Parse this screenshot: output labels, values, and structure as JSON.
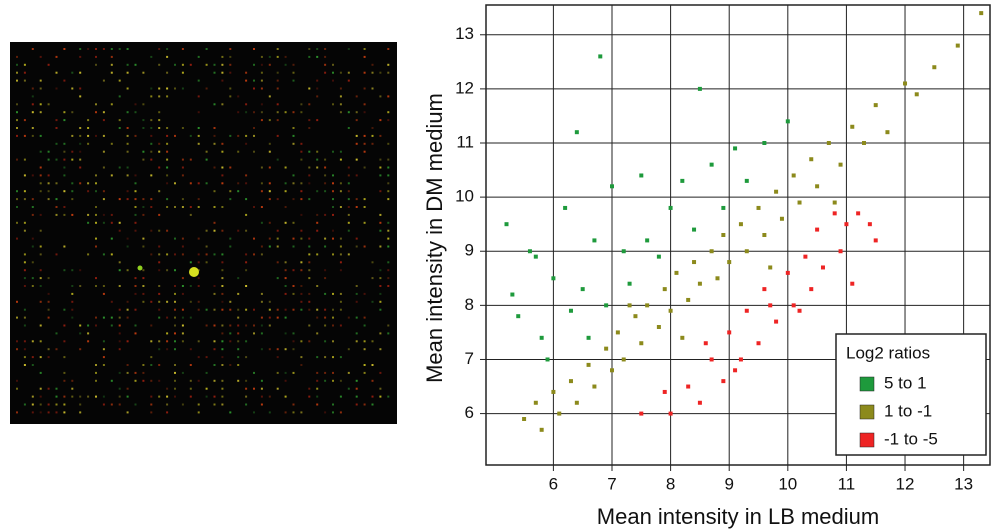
{
  "chart_data": {
    "type": "scatter",
    "x_label": "Mean intensity in LB medium",
    "y_label": "Mean intensity in DM medium",
    "legend_title": "Log2 ratios",
    "legend_position": "lower right",
    "grid": true,
    "xlim": [
      4.85,
      13.45
    ],
    "xticks": [
      6,
      7,
      8,
      9,
      10,
      11,
      12,
      13
    ],
    "ylim": [
      5.05,
      13.55
    ],
    "yticks": [
      6,
      7,
      8,
      9,
      10,
      11,
      12,
      13
    ],
    "series": [
      {
        "name": "5 to 1",
        "color": "#1e9a3c",
        "x": [
          5.2,
          5.3,
          5.4,
          5.6,
          5.7,
          5.8,
          6.0,
          6.2,
          6.3,
          6.4,
          6.5,
          6.7,
          6.8,
          6.9,
          7.0,
          7.2,
          7.3,
          7.5,
          7.6,
          7.8,
          8.0,
          8.2,
          8.4,
          8.5,
          8.7,
          8.9,
          9.1,
          9.3,
          9.6,
          10.0,
          5.9,
          6.6
        ],
        "y": [
          9.5,
          8.2,
          7.8,
          9.0,
          8.9,
          7.4,
          8.5,
          9.8,
          7.9,
          11.2,
          8.3,
          9.2,
          12.6,
          8.0,
          10.2,
          9.0,
          8.4,
          10.4,
          9.2,
          8.9,
          9.8,
          10.3,
          9.4,
          12.0,
          10.6,
          9.8,
          10.9,
          10.3,
          11.0,
          11.4,
          7.0,
          7.4
        ]
      },
      {
        "name": "1 to -1",
        "color": "#8c8a1c",
        "x": [
          5.5,
          5.7,
          5.8,
          6.0,
          6.1,
          6.3,
          6.4,
          6.6,
          6.7,
          6.9,
          7.0,
          7.1,
          7.2,
          7.4,
          7.5,
          7.6,
          7.8,
          7.9,
          8.0,
          8.1,
          8.3,
          8.4,
          8.5,
          8.7,
          8.8,
          8.9,
          9.0,
          9.2,
          9.3,
          9.5,
          9.6,
          9.8,
          9.9,
          10.1,
          10.2,
          10.4,
          10.5,
          10.7,
          10.9,
          11.1,
          11.3,
          11.5,
          11.7,
          12.0,
          12.2,
          12.5,
          12.9,
          13.3,
          8.2,
          7.3,
          9.7,
          10.8
        ],
        "y": [
          5.9,
          6.2,
          5.7,
          6.4,
          6.0,
          6.6,
          6.2,
          6.9,
          6.5,
          7.2,
          6.8,
          7.5,
          7.0,
          7.8,
          7.3,
          8.0,
          7.6,
          8.3,
          7.9,
          8.6,
          8.1,
          8.8,
          8.4,
          9.0,
          8.5,
          9.3,
          8.8,
          9.5,
          9.0,
          9.8,
          9.3,
          10.1,
          9.6,
          10.4,
          9.9,
          10.7,
          10.2,
          11.0,
          10.6,
          11.3,
          11.0,
          11.7,
          11.2,
          12.1,
          11.9,
          12.4,
          12.8,
          13.4,
          7.4,
          8.0,
          8.7,
          9.9
        ]
      },
      {
        "name": "-1 to -5",
        "color": "#ee2424",
        "x": [
          8.0,
          8.3,
          8.5,
          8.7,
          8.9,
          9.0,
          9.2,
          9.3,
          9.5,
          9.6,
          9.8,
          10.0,
          10.1,
          10.3,
          10.4,
          10.5,
          10.6,
          10.8,
          10.9,
          11.0,
          11.2,
          11.4,
          11.5,
          9.1,
          9.7,
          10.2,
          8.6,
          11.1,
          7.5,
          7.9
        ],
        "y": [
          6.0,
          6.5,
          6.2,
          7.0,
          6.6,
          7.5,
          7.0,
          7.9,
          7.3,
          8.3,
          7.7,
          8.6,
          8.0,
          8.9,
          8.3,
          9.4,
          8.7,
          9.7,
          9.0,
          9.5,
          9.7,
          9.5,
          9.2,
          6.8,
          8.0,
          7.9,
          7.3,
          8.4,
          6.0,
          6.4
        ]
      }
    ]
  }
}
